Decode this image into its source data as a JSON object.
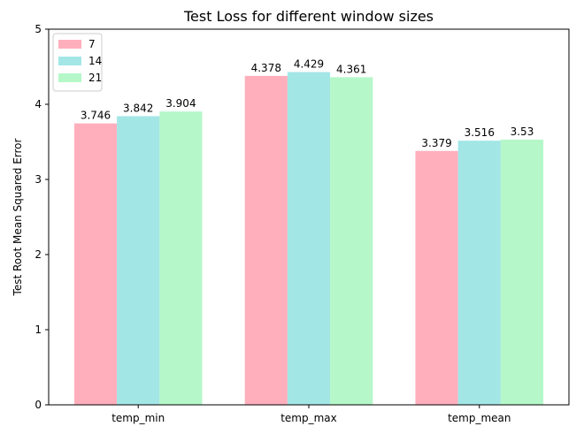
{
  "chart_data": {
    "type": "bar",
    "title": "Test Loss for different window sizes",
    "xlabel": "",
    "ylabel": "Test Root Mean Squared Error",
    "ylim": [
      0,
      5
    ],
    "yticks": [
      0,
      1,
      2,
      3,
      4,
      5
    ],
    "categories": [
      "temp_min",
      "temp_max",
      "temp_mean"
    ],
    "series": [
      {
        "name": "7",
        "color": "#ffafbc",
        "values": [
          3.746,
          4.378,
          3.379
        ],
        "labels": [
          "3.746",
          "4.378",
          "3.379"
        ]
      },
      {
        "name": "14",
        "color": "#a3e6e6",
        "values": [
          3.842,
          4.429,
          3.516
        ],
        "labels": [
          "3.842",
          "4.429",
          "3.516"
        ]
      },
      {
        "name": "21",
        "color": "#b5f7c9",
        "values": [
          3.904,
          4.361,
          3.53
        ],
        "labels": [
          "3.904",
          "4.361",
          "3.53"
        ]
      }
    ],
    "legend_position": "top-left",
    "grid": false
  }
}
